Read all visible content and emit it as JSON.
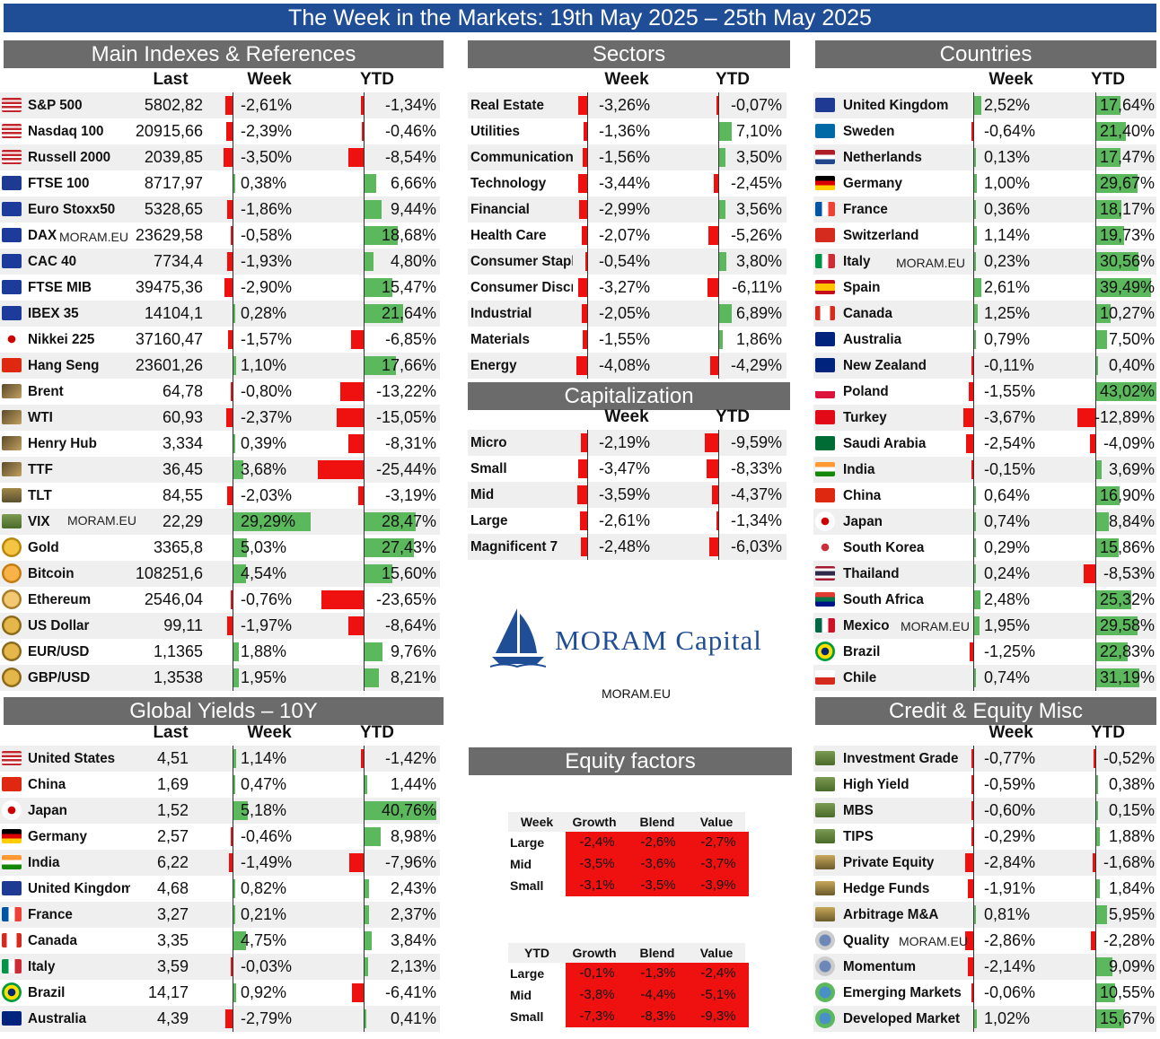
{
  "title": "The Week in the Markets: 19th May 2025 – 25th May 2025",
  "colors": {
    "banner": "#1f4e96",
    "section": "#6b6b6b",
    "positive": "#5cb85c",
    "negative": "#ef1010"
  },
  "watermark": "MORAM.EU",
  "logo": {
    "name": "MORAM Capital",
    "url": "MORAM.EU"
  },
  "main": {
    "title": "Main Indexes & References",
    "headers": {
      "last": "Last",
      "week": "Week",
      "ytd": "YTD"
    },
    "rows": [
      {
        "name": "S&P 500",
        "last": "5802,82",
        "week": "-2,61%",
        "ytd": "-1,34%",
        "icon": "us-flag-icon"
      },
      {
        "name": "Nasdaq 100",
        "last": "20915,66",
        "week": "-2,39%",
        "ytd": "-0,46%",
        "icon": "us-flag-icon"
      },
      {
        "name": "Russell 2000",
        "last": "2039,85",
        "week": "-3,50%",
        "ytd": "-8,54%",
        "icon": "us-flag-icon"
      },
      {
        "name": "FTSE 100",
        "last": "8717,97",
        "week": "0,38%",
        "ytd": "6,66%",
        "icon": "uk-flag-icon"
      },
      {
        "name": "Euro Stoxx50",
        "last": "5328,65",
        "week": "-1,86%",
        "ytd": "9,44%",
        "icon": "eu-flag-icon"
      },
      {
        "name": "DAX",
        "last": "23629,58",
        "week": "-0,58%",
        "ytd": "18,68%",
        "icon": "eu-flag-icon"
      },
      {
        "name": "CAC 40",
        "last": "7734,4",
        "week": "-1,93%",
        "ytd": "4,80%",
        "icon": "eu-flag-icon"
      },
      {
        "name": "FTSE MIB",
        "last": "39475,36",
        "week": "-2,90%",
        "ytd": "15,47%",
        "icon": "eu-flag-icon"
      },
      {
        "name": "IBEX 35",
        "last": "14104,1",
        "week": "0,28%",
        "ytd": "21,64%",
        "icon": "eu-flag-icon"
      },
      {
        "name": "Nikkei 225",
        "last": "37160,47",
        "week": "-1,57%",
        "ytd": "-6,85%",
        "icon": "japan-flag-icon"
      },
      {
        "name": "Hang Seng",
        "last": "23601,26",
        "week": "1,10%",
        "ytd": "17,66%",
        "icon": "china-flag-icon"
      },
      {
        "name": "Brent",
        "last": "64,78",
        "week": "-0,80%",
        "ytd": "-13,22%",
        "icon": "oil-rig-icon"
      },
      {
        "name": "WTI",
        "last": "60,93",
        "week": "-2,37%",
        "ytd": "-15,05%",
        "icon": "oil-rig-icon"
      },
      {
        "name": "Henry Hub",
        "last": "3,334",
        "week": "0,39%",
        "ytd": "-8,31%",
        "icon": "oil-rig-icon"
      },
      {
        "name": "TTF",
        "last": "36,45",
        "week": "3,68%",
        "ytd": "-25,44%",
        "icon": "oil-rig-icon"
      },
      {
        "name": "TLT",
        "last": "84,55",
        "week": "-2,03%",
        "ytd": "-3,19%",
        "icon": "bank-icon"
      },
      {
        "name": "VIX",
        "last": "22,29",
        "week": "29,29%",
        "ytd": "28,47%",
        "icon": "banknote-icon"
      },
      {
        "name": "Gold",
        "last": "3365,8",
        "week": "5,03%",
        "ytd": "27,43%",
        "icon": "gold-coin-icon"
      },
      {
        "name": "Bitcoin",
        "last": "108251,6",
        "week": "4,54%",
        "ytd": "15,60%",
        "icon": "bitcoin-icon"
      },
      {
        "name": "Ethereum",
        "last": "2546,04",
        "week": "-0,76%",
        "ytd": "-23,65%",
        "icon": "ethereum-icon"
      },
      {
        "name": "US Dollar",
        "last": "99,11",
        "week": "-1,97%",
        "ytd": "-8,64%",
        "icon": "coins-icon"
      },
      {
        "name": "EUR/USD",
        "last": "1,1365",
        "week": "1,88%",
        "ytd": "9,76%",
        "icon": "coins-icon"
      },
      {
        "name": "GBP/USD",
        "last": "1,3538",
        "week": "1,95%",
        "ytd": "8,21%",
        "icon": "coins-icon"
      }
    ]
  },
  "sectors": {
    "title": "Sectors",
    "headers": {
      "week": "Week",
      "ytd": "YTD"
    },
    "rows": [
      {
        "name": "Real Estate",
        "week": "-3,26%",
        "ytd": "-0,07%"
      },
      {
        "name": "Utilities",
        "week": "-1,36%",
        "ytd": "7,10%"
      },
      {
        "name": "Communication",
        "week": "-1,56%",
        "ytd": "3,50%"
      },
      {
        "name": "Technology",
        "week": "-3,44%",
        "ytd": "-2,45%"
      },
      {
        "name": "Financial",
        "week": "-2,99%",
        "ytd": "3,56%"
      },
      {
        "name": "Health Care",
        "week": "-2,07%",
        "ytd": "-5,26%"
      },
      {
        "name": "Consumer Staple",
        "week": "-0,54%",
        "ytd": "3,80%"
      },
      {
        "name": "Consumer Discre",
        "week": "-3,27%",
        "ytd": "-6,11%"
      },
      {
        "name": "Industrial",
        "week": "-2,05%",
        "ytd": "6,89%"
      },
      {
        "name": "Materials",
        "week": "-1,55%",
        "ytd": "1,86%"
      },
      {
        "name": "Energy",
        "week": "-4,08%",
        "ytd": "-4,29%"
      }
    ]
  },
  "capitalization": {
    "title": "Capitalization",
    "headers": {
      "week": "Week",
      "ytd": "YTD"
    },
    "rows": [
      {
        "name": "Micro",
        "week": "-2,19%",
        "ytd": "-9,59%"
      },
      {
        "name": "Small",
        "week": "-3,47%",
        "ytd": "-8,33%"
      },
      {
        "name": "Mid",
        "week": "-3,59%",
        "ytd": "-4,37%"
      },
      {
        "name": "Large",
        "week": "-2,61%",
        "ytd": "-1,34%"
      },
      {
        "name": "Magnificent 7",
        "week": "-2,48%",
        "ytd": "-6,03%"
      }
    ]
  },
  "countries": {
    "title": "Countries",
    "headers": {
      "week": "Week",
      "ytd": "YTD"
    },
    "rows": [
      {
        "name": "United Kingdom",
        "week": "2,52%",
        "ytd": "17,64%",
        "icon": "uk-flag-icon"
      },
      {
        "name": "Sweden",
        "week": "-0,64%",
        "ytd": "21,40%",
        "icon": "sweden-flag-icon"
      },
      {
        "name": "Netherlands",
        "week": "0,13%",
        "ytd": "17,47%",
        "icon": "netherlands-flag-icon"
      },
      {
        "name": "Germany",
        "week": "1,00%",
        "ytd": "29,67%",
        "icon": "germany-flag-icon"
      },
      {
        "name": "France",
        "week": "0,36%",
        "ytd": "18,17%",
        "icon": "france-flag-icon"
      },
      {
        "name": "Switzerland",
        "week": "1,14%",
        "ytd": "19,73%",
        "icon": "switzerland-flag-icon"
      },
      {
        "name": "Italy",
        "week": "0,23%",
        "ytd": "30,56%",
        "icon": "italy-flag-icon"
      },
      {
        "name": "Spain",
        "week": "2,61%",
        "ytd": "39,49%",
        "icon": "spain-flag-icon"
      },
      {
        "name": "Canada",
        "week": "1,25%",
        "ytd": "10,27%",
        "icon": "canada-flag-icon"
      },
      {
        "name": "Australia",
        "week": "0,79%",
        "ytd": "7,50%",
        "icon": "australia-flag-icon"
      },
      {
        "name": "New Zealand",
        "week": "-0,11%",
        "ytd": "0,40%",
        "icon": "new-zealand-flag-icon"
      },
      {
        "name": "Poland",
        "week": "-1,55%",
        "ytd": "43,02%",
        "icon": "poland-flag-icon"
      },
      {
        "name": "Turkey",
        "week": "-3,67%",
        "ytd": "-12,89%",
        "icon": "turkey-flag-icon"
      },
      {
        "name": "Saudi Arabia",
        "week": "-2,54%",
        "ytd": "-4,09%",
        "icon": "saudi-flag-icon"
      },
      {
        "name": "India",
        "week": "-0,15%",
        "ytd": "3,69%",
        "icon": "india-flag-icon"
      },
      {
        "name": "China",
        "week": "0,64%",
        "ytd": "16,90%",
        "icon": "china-flag-icon"
      },
      {
        "name": "Japan",
        "week": "0,74%",
        "ytd": "8,84%",
        "icon": "japan-flag-icon"
      },
      {
        "name": "South Korea",
        "week": "0,29%",
        "ytd": "15,86%",
        "icon": "korea-flag-icon"
      },
      {
        "name": "Thailand",
        "week": "0,24%",
        "ytd": "-8,53%",
        "icon": "thailand-flag-icon"
      },
      {
        "name": "South Africa",
        "week": "2,48%",
        "ytd": "25,32%",
        "icon": "south-africa-flag-icon"
      },
      {
        "name": "Mexico",
        "week": "1,95%",
        "ytd": "29,58%",
        "icon": "mexico-flag-icon"
      },
      {
        "name": "Brazil",
        "week": "-1,25%",
        "ytd": "22,83%",
        "icon": "brazil-flag-icon"
      },
      {
        "name": "Chile",
        "week": "0,74%",
        "ytd": "31,19%",
        "icon": "chile-flag-icon"
      }
    ]
  },
  "yields": {
    "title": "Global Yields – 10Y",
    "headers": {
      "last": "Last",
      "week": "Week",
      "ytd": "YTD"
    },
    "rows": [
      {
        "name": "United States",
        "last": "4,51",
        "week": "1,14%",
        "ytd": "-1,42%",
        "icon": "us-flag-icon"
      },
      {
        "name": "China",
        "last": "1,69",
        "week": "0,47%",
        "ytd": "1,44%",
        "icon": "china-flag-icon"
      },
      {
        "name": "Japan",
        "last": "1,52",
        "week": "5,18%",
        "ytd": "40,76%",
        "icon": "japan-flag-icon"
      },
      {
        "name": "Germany",
        "last": "2,57",
        "week": "-0,46%",
        "ytd": "8,98%",
        "icon": "germany-flag-icon"
      },
      {
        "name": "India",
        "last": "6,22",
        "week": "-1,49%",
        "ytd": "-7,96%",
        "icon": "india-flag-icon"
      },
      {
        "name": "United Kingdom",
        "last": "4,68",
        "week": "0,82%",
        "ytd": "2,43%",
        "icon": "uk-flag-icon"
      },
      {
        "name": "France",
        "last": "3,27",
        "week": "0,21%",
        "ytd": "2,37%",
        "icon": "france-flag-icon"
      },
      {
        "name": "Canada",
        "last": "3,35",
        "week": "4,75%",
        "ytd": "3,84%",
        "icon": "canada-flag-icon"
      },
      {
        "name": "Italy",
        "last": "3,59",
        "week": "-0,03%",
        "ytd": "2,13%",
        "icon": "italy-flag-icon"
      },
      {
        "name": "Brazil",
        "last": "14,17",
        "week": "0,92%",
        "ytd": "-6,41%",
        "icon": "brazil-flag-icon"
      },
      {
        "name": "Australia",
        "last": "4,39",
        "week": "-2,79%",
        "ytd": "0,41%",
        "icon": "australia-flag-icon"
      }
    ]
  },
  "credit": {
    "title": "Credit & Equity Misc",
    "headers": {
      "week": "Week",
      "ytd": "YTD"
    },
    "rows": [
      {
        "name": "Investment Grade",
        "week": "-0,77%",
        "ytd": "-0,52%",
        "icon": "banknote-icon"
      },
      {
        "name": "High Yield",
        "week": "-0,59%",
        "ytd": "0,38%",
        "icon": "banknote-icon"
      },
      {
        "name": "MBS",
        "week": "-0,60%",
        "ytd": "0,15%",
        "icon": "banknote-icon"
      },
      {
        "name": "TIPS",
        "week": "-0,29%",
        "ytd": "1,88%",
        "icon": "banknote-icon"
      },
      {
        "name": "Private Equity",
        "week": "-2,84%",
        "ytd": "-1,68%",
        "icon": "scales-icon"
      },
      {
        "name": "Hedge Funds",
        "week": "-1,91%",
        "ytd": "1,84%",
        "icon": "scales-icon"
      },
      {
        "name": "Arbitrage M&A",
        "week": "0,81%",
        "ytd": "5,95%",
        "icon": "scales-icon"
      },
      {
        "name": "Quality",
        "week": "-2,86%",
        "ytd": "-2,28%",
        "icon": "people-icon"
      },
      {
        "name": "Momentum",
        "week": "-2,14%",
        "ytd": "9,09%",
        "icon": "people-icon"
      },
      {
        "name": "Emerging Markets",
        "week": "-0,06%",
        "ytd": "10,55%",
        "icon": "globe-icon"
      },
      {
        "name": "Developed Market",
        "week": "1,02%",
        "ytd": "15,67%",
        "icon": "globe-icon"
      }
    ]
  },
  "factors": {
    "title": "Equity factors",
    "columns": [
      "Growth",
      "Blend",
      "Value"
    ],
    "rows": [
      "Large",
      "Mid",
      "Small"
    ],
    "week": {
      "label": "Week",
      "values": [
        [
          "-2,4%",
          "-2,6%",
          "-2,7%"
        ],
        [
          "-3,5%",
          "-3,6%",
          "-3,7%"
        ],
        [
          "-3,1%",
          "-3,5%",
          "-3,9%"
        ]
      ]
    },
    "ytd": {
      "label": "YTD",
      "values": [
        [
          "-0,1%",
          "-1,3%",
          "-2,4%"
        ],
        [
          "-3,8%",
          "-4,4%",
          "-5,1%"
        ],
        [
          "-7,3%",
          "-8,3%",
          "-9,3%"
        ]
      ]
    }
  }
}
